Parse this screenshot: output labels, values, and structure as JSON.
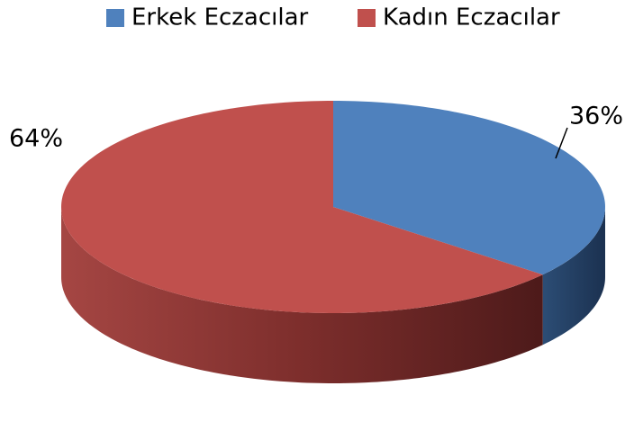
{
  "chart_data": {
    "type": "pie",
    "categories": [
      "Erkek Eczacılar",
      "Kadın Eczacılar"
    ],
    "values": [
      36,
      64
    ],
    "value_labels": [
      "36%",
      "64%"
    ],
    "colors": [
      "#4f81bd",
      "#c0504d"
    ],
    "legend": "top"
  }
}
